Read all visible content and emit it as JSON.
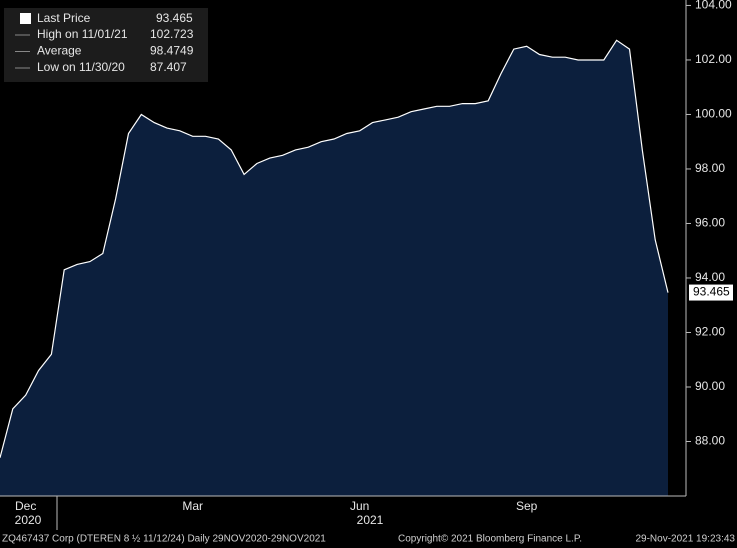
{
  "chart_data": {
    "type": "area",
    "categories": [
      null,
      null,
      "Dec",
      null,
      null,
      null,
      null,
      null,
      null,
      null,
      null,
      null,
      null,
      null,
      null,
      "Mar",
      null,
      null,
      null,
      null,
      null,
      null,
      null,
      null,
      null,
      null,
      null,
      null,
      "Jun",
      null,
      null,
      null,
      null,
      null,
      null,
      null,
      null,
      null,
      null,
      null,
      null,
      "Sep",
      null,
      null,
      null,
      null,
      null,
      null,
      null,
      null,
      null,
      null,
      null
    ],
    "years": [
      "2020",
      "2021"
    ],
    "series": [
      {
        "name": "Last Price",
        "color": "#ffffff",
        "fill": "#0c1f3d",
        "values": [
          87.407,
          89.2,
          89.7,
          90.6,
          91.2,
          94.3,
          94.5,
          94.6,
          94.9,
          96.9,
          99.3,
          100.0,
          99.7,
          99.5,
          99.4,
          99.2,
          99.2,
          99.1,
          98.7,
          97.8,
          98.2,
          98.4,
          98.5,
          98.7,
          98.8,
          99.0,
          99.1,
          99.3,
          99.4,
          99.7,
          99.8,
          99.9,
          100.1,
          100.2,
          100.3,
          100.3,
          100.4,
          100.4,
          100.5,
          101.5,
          102.4,
          102.5,
          102.2,
          102.1,
          102.1,
          102.0,
          102.0,
          102.0,
          102.723,
          102.4,
          98.7,
          95.4,
          93.465
        ]
      }
    ],
    "legend_stats": [
      {
        "label": "High on 11/01/21",
        "value": 102.723
      },
      {
        "label": "Average",
        "value": 98.4749
      },
      {
        "label": "Low on 11/30/20",
        "value": 87.407
      }
    ],
    "ylim": [
      86,
      104.2
    ],
    "yticks": [
      {
        "value": 88,
        "label": "88.00"
      },
      {
        "value": 90,
        "label": "90.00"
      },
      {
        "value": 92,
        "label": "92.00"
      },
      {
        "value": 94,
        "label": "94.00"
      },
      {
        "value": 96,
        "label": "96.00"
      },
      {
        "value": 98,
        "label": "98.00"
      },
      {
        "value": 100,
        "label": "100.00"
      },
      {
        "value": 102,
        "label": "102.00"
      },
      {
        "value": 104,
        "label": "104.00"
      }
    ],
    "footer": {
      "left": "ZQ467437 Corp (DTEREN 8 ½ 11/12/24)  Daily 29NOV2020-29NOV2021",
      "center": "Copyright© 2021 Bloomberg Finance L.P.",
      "right": "29-Nov-2021 19:23:43"
    }
  }
}
